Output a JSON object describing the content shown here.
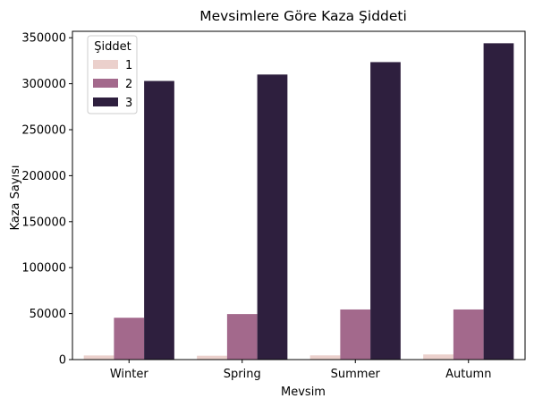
{
  "chart_data": {
    "type": "bar",
    "title": "Mevsimlere Göre Kaza Şiddeti",
    "xlabel": "Mevsim",
    "ylabel": "Kaza Sayısı",
    "categories": [
      "Winter",
      "Spring",
      "Summer",
      "Autumn"
    ],
    "ylim": [
      0,
      357000
    ],
    "yticks": [
      0,
      50000,
      100000,
      150000,
      200000,
      250000,
      300000,
      350000
    ],
    "ytick_labels": [
      "0",
      "50000",
      "100000",
      "150000",
      "200000",
      "250000",
      "300000",
      "350000"
    ],
    "legend": {
      "title": "Şiddet",
      "placement": "top-left"
    },
    "grid": false,
    "series": [
      {
        "name": "1",
        "color": "#ebd0cc",
        "values": [
          4500,
          4200,
          4600,
          5600
        ]
      },
      {
        "name": "2",
        "color": "#a3698c",
        "values": [
          45500,
          49500,
          54500,
          54500
        ]
      },
      {
        "name": "3",
        "color": "#2e1f3e",
        "values": [
          303000,
          310000,
          323500,
          344000
        ]
      }
    ]
  }
}
